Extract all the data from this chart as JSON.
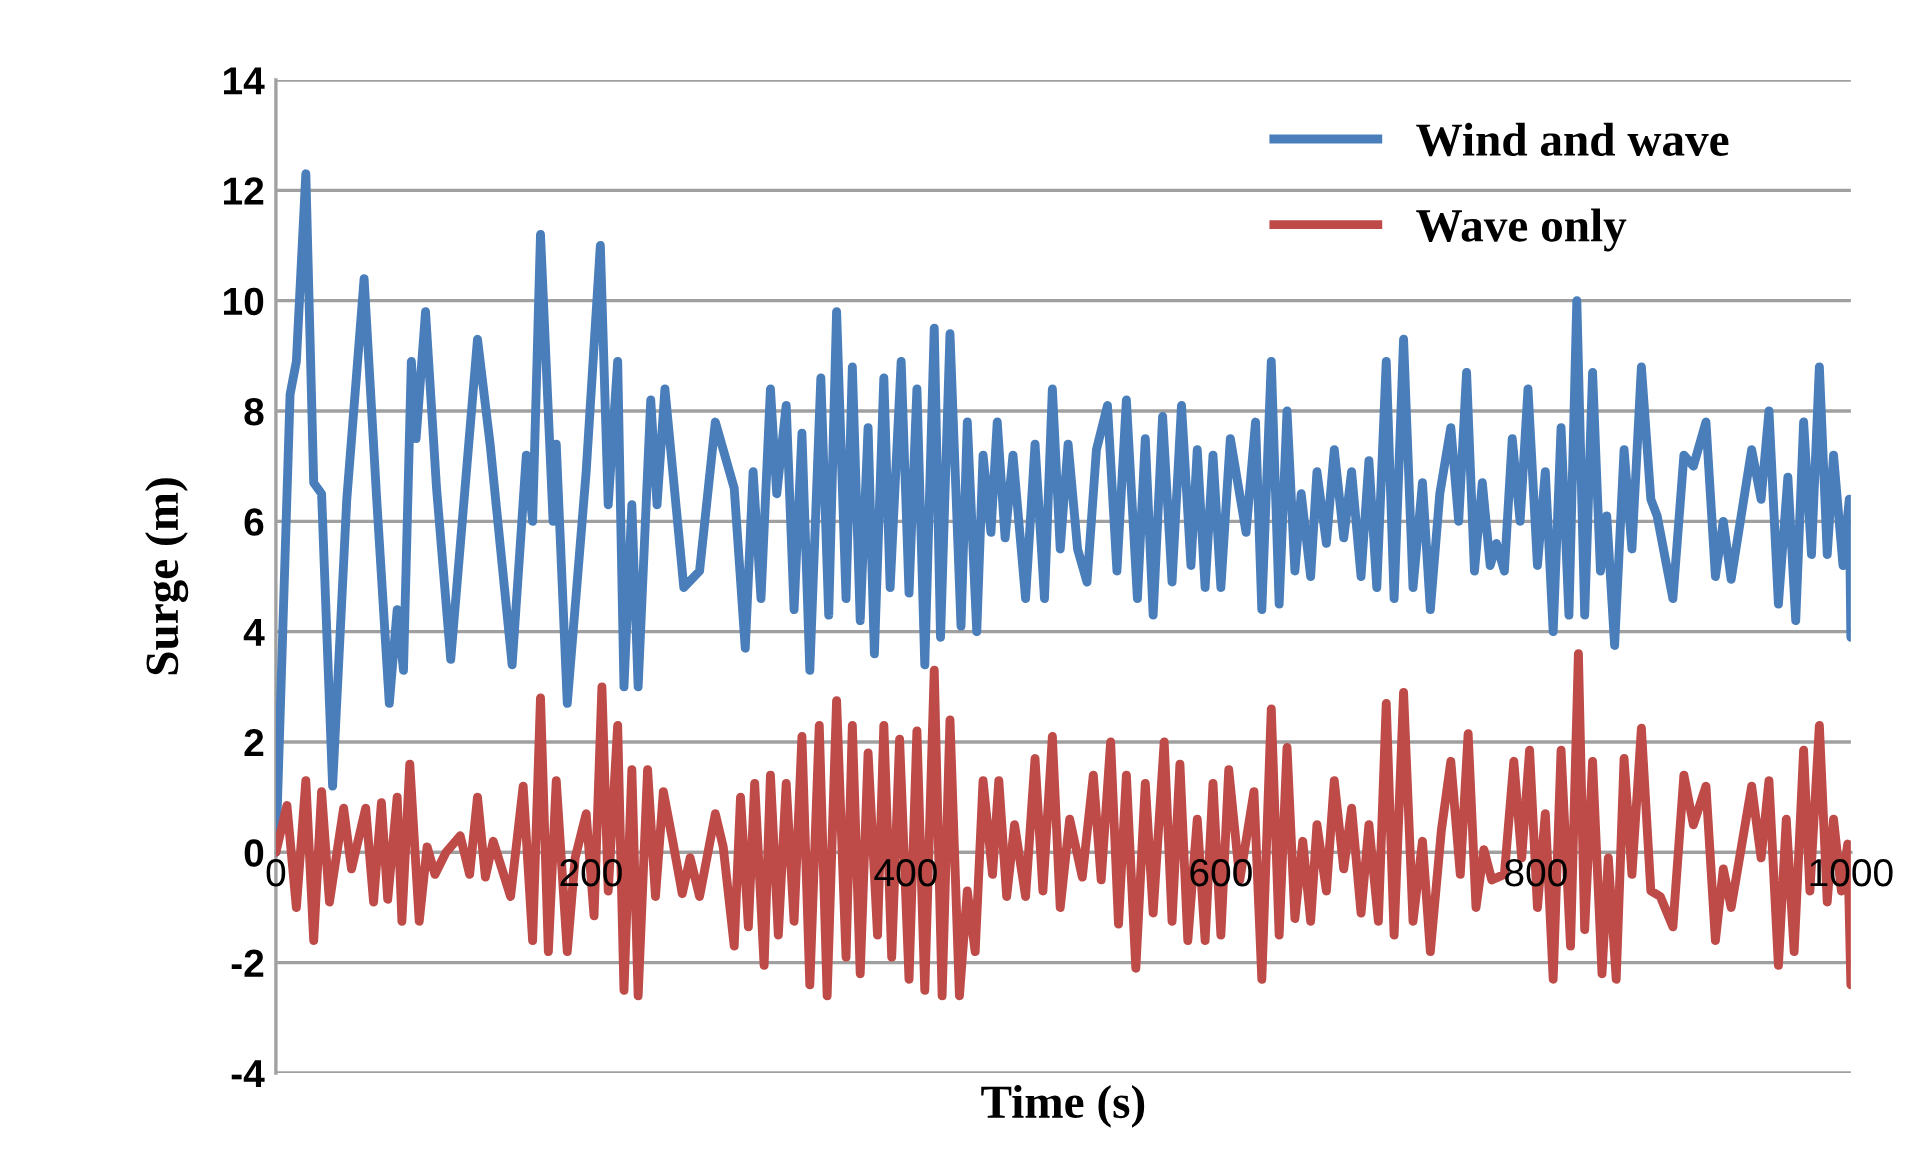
{
  "chart_data": {
    "type": "line",
    "xlabel": "Time (s)",
    "ylabel": "Surge (m)",
    "xlim": [
      0,
      1000
    ],
    "xticks": [
      0,
      200,
      400,
      600,
      800,
      1000
    ],
    "ylim": [
      -4,
      14
    ],
    "yticks": [
      -4,
      -2,
      0,
      2,
      4,
      6,
      8,
      10,
      12,
      14
    ],
    "grid": "y",
    "legend": "top right",
    "marker": "none",
    "line_style": "solid",
    "series": [
      {
        "name": "Wind and wave",
        "color": "#4a7ebb",
        "x": [
          0,
          9,
          13,
          19,
          24,
          29,
          36,
          45,
          56,
          64,
          72,
          77,
          81,
          86,
          89,
          95,
          102,
          111,
          128,
          136,
          150,
          159,
          163,
          168,
          176,
          178,
          185,
          197,
          206,
          211,
          217,
          221,
          226,
          230,
          238,
          242,
          247,
          259,
          269,
          279,
          291,
          298,
          303,
          308,
          314,
          318,
          324,
          329,
          334,
          339,
          346,
          351,
          356,
          362,
          366,
          371,
          376,
          380,
          386,
          390,
          397,
          402,
          407,
          412,
          418,
          422,
          428,
          435,
          439,
          445,
          449,
          454,
          458,
          463,
          468,
          476,
          482,
          488,
          493,
          498,
          503,
          509,
          515,
          521,
          528,
          534,
          540,
          547,
          552,
          557,
          563,
          569,
          575,
          581,
          585,
          590,
          595,
          600,
          606,
          616,
          622,
          626,
          632,
          637,
          642,
          647,
          651,
          657,
          661,
          667,
          672,
          678,
          683,
          689,
          694,
          699,
          705,
          710,
          716,
          722,
          728,
          733,
          739,
          746,
          751,
          756,
          761,
          766,
          771,
          775,
          780,
          785,
          790,
          795,
          801,
          806,
          811,
          816,
          821,
          826,
          831,
          836,
          841,
          845,
          850,
          856,
          861,
          867,
          873,
          877,
          887,
          894,
          900,
          908,
          914,
          919,
          924,
          937,
          943,
          948,
          954,
          960,
          965,
          970,
          975,
          980,
          985,
          989,
          995,
          999,
          1000
        ],
        "values": [
          0,
          8.3,
          8.9,
          12.3,
          6.7,
          6.5,
          1.2,
          6.4,
          10.4,
          6.4,
          2.7,
          4.4,
          3.3,
          8.9,
          7.5,
          9.8,
          6.6,
          3.5,
          9.3,
          7.4,
          3.4,
          7.2,
          6.0,
          11.2,
          6.0,
          7.4,
          2.7,
          6.9,
          11.0,
          6.3,
          8.9,
          3.0,
          6.3,
          3.0,
          8.2,
          6.3,
          8.4,
          4.8,
          5.1,
          7.8,
          6.6,
          3.7,
          6.9,
          4.6,
          8.4,
          6.5,
          8.1,
          4.4,
          7.6,
          3.3,
          8.6,
          4.3,
          9.8,
          4.6,
          8.8,
          4.2,
          7.7,
          3.6,
          8.6,
          4.8,
          8.9,
          4.7,
          8.4,
          3.4,
          9.5,
          3.9,
          9.4,
          4.1,
          7.8,
          4.0,
          7.2,
          5.8,
          7.8,
          5.7,
          7.2,
          4.6,
          7.4,
          4.6,
          8.4,
          5.5,
          7.4,
          5.5,
          4.9,
          7.3,
          8.1,
          5.1,
          8.2,
          4.6,
          7.5,
          4.3,
          7.9,
          4.9,
          8.1,
          5.2,
          7.3,
          4.8,
          7.2,
          4.8,
          7.5,
          5.8,
          7.8,
          4.4,
          8.9,
          4.5,
          8.0,
          5.1,
          6.5,
          5.0,
          6.9,
          5.6,
          7.3,
          5.7,
          6.9,
          5.0,
          7.1,
          4.8,
          8.9,
          4.6,
          9.3,
          4.8,
          6.7,
          4.4,
          6.5,
          7.7,
          6.0,
          8.7,
          5.1,
          6.7,
          5.2,
          5.6,
          5.1,
          7.5,
          6.0,
          8.4,
          5.2,
          6.9,
          4.0,
          7.7,
          4.3,
          10.0,
          4.3,
          8.7,
          5.1,
          6.1,
          3.75,
          7.3,
          5.5,
          8.8,
          6.4,
          6.1,
          4.6,
          7.2,
          7.0,
          7.8,
          5.0,
          6.0,
          4.95,
          7.3,
          6.4,
          8.0,
          4.5,
          6.8,
          4.2,
          7.8,
          5.4,
          8.8,
          5.4,
          7.2,
          5.2,
          6.4,
          3.9
        ]
      },
      {
        "name": "Wave only",
        "color": "#be4b48",
        "x": [
          0,
          7,
          13,
          19,
          24,
          29,
          34,
          43,
          48,
          57,
          62,
          67,
          71,
          77,
          80,
          85,
          91,
          96,
          101,
          108,
          117,
          123,
          128,
          133,
          138,
          149,
          157,
          163,
          168,
          173,
          178,
          185,
          190,
          197,
          202,
          207,
          211,
          217,
          221,
          226,
          230,
          236,
          241,
          246,
          252,
          258,
          263,
          269,
          279,
          284,
          291,
          295,
          300,
          304,
          310,
          314,
          319,
          324,
          329,
          334,
          339,
          345,
          350,
          356,
          362,
          366,
          371,
          376,
          382,
          386,
          391,
          396,
          402,
          407,
          412,
          418,
          423,
          428,
          434,
          439,
          444,
          449,
          455,
          459,
          464,
          469,
          476,
          482,
          487,
          493,
          498,
          504,
          512,
          519,
          524,
          530,
          535,
          540,
          546,
          552,
          557,
          564,
          569,
          574,
          579,
          585,
          590,
          595,
          600,
          605,
          612,
          621,
          626,
          632,
          637,
          642,
          647,
          652,
          657,
          661,
          667,
          672,
          678,
          683,
          689,
          694,
          700,
          705,
          710,
          716,
          722,
          728,
          733,
          740,
          746,
          752,
          757,
          762,
          767,
          772,
          780,
          786,
          791,
          796,
          801,
          806,
          811,
          816,
          822,
          827,
          831,
          836,
          842,
          846,
          851,
          856,
          861,
          867,
          873,
          879,
          887,
          894,
          900,
          908,
          914,
          919,
          924,
          937,
          943,
          948,
          954,
          959,
          964,
          970,
          974,
          980,
          985,
          989,
          994,
          998,
          1000
        ],
        "values": [
          0,
          0.85,
          -1.0,
          1.3,
          -1.6,
          1.1,
          -0.9,
          0.8,
          -0.3,
          0.8,
          -0.9,
          0.9,
          -0.85,
          1.0,
          -1.25,
          1.6,
          -1.25,
          0.1,
          -0.4,
          0.0,
          0.3,
          -0.4,
          1.0,
          -0.45,
          0.2,
          -0.8,
          1.2,
          -1.6,
          2.8,
          -1.8,
          1.3,
          -1.8,
          -0.1,
          0.7,
          -1.15,
          3.0,
          -0.7,
          2.3,
          -2.5,
          1.5,
          -2.6,
          1.5,
          -0.8,
          1.1,
          0.2,
          -0.75,
          -0.1,
          -0.8,
          0.7,
          0.1,
          -1.7,
          1.0,
          -1.35,
          1.25,
          -2.05,
          1.4,
          -1.5,
          1.25,
          -1.25,
          2.1,
          -2.4,
          2.3,
          -2.6,
          2.75,
          -1.9,
          2.3,
          -2.2,
          1.8,
          -1.5,
          2.3,
          -1.9,
          2.05,
          -2.3,
          2.2,
          -2.5,
          3.3,
          -2.6,
          2.4,
          -2.6,
          -0.7,
          -1.8,
          1.3,
          -0.4,
          1.3,
          -0.8,
          0.5,
          -0.8,
          1.7,
          -0.7,
          2.1,
          -1.0,
          0.6,
          -0.45,
          1.4,
          -0.5,
          2.0,
          -1.3,
          1.4,
          -2.1,
          1.25,
          -1.1,
          2.0,
          -1.25,
          1.6,
          -1.6,
          0.6,
          -1.6,
          1.25,
          -1.5,
          1.5,
          -0.5,
          1.1,
          -2.3,
          2.6,
          -1.5,
          1.9,
          -1.2,
          0.2,
          -1.25,
          0.5,
          -0.7,
          1.3,
          -0.3,
          0.8,
          -1.1,
          0.5,
          -1.25,
          2.7,
          -1.5,
          2.9,
          -1.25,
          0.2,
          -1.8,
          0.4,
          1.65,
          -0.4,
          2.15,
          -1.0,
          0.05,
          -0.5,
          -0.4,
          1.65,
          -0.1,
          1.85,
          -1.0,
          0.7,
          -2.3,
          1.85,
          -1.7,
          3.6,
          -1.4,
          1.65,
          -2.2,
          -0.1,
          -2.3,
          1.7,
          -0.4,
          2.25,
          -0.7,
          -0.8,
          -1.35,
          1.4,
          0.5,
          1.2,
          -1.6,
          -0.3,
          -1.0,
          1.2,
          -0.1,
          1.3,
          -2.05,
          0.6,
          -1.8,
          1.85,
          -0.7,
          2.3,
          -0.9,
          0.6,
          -0.7,
          0.15,
          -2.4
        ]
      }
    ]
  }
}
